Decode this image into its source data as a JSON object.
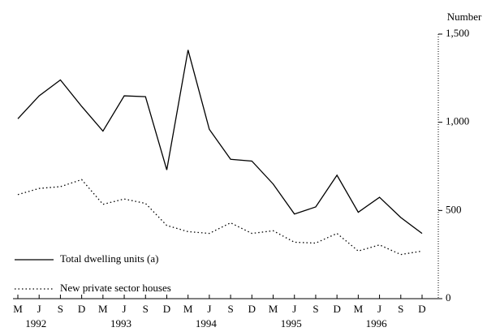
{
  "chart_data": {
    "type": "line",
    "y_label": "Number",
    "categories": [
      "M",
      "J",
      "S",
      "D",
      "M",
      "J",
      "S",
      "D",
      "M",
      "J",
      "S",
      "D",
      "M",
      "J",
      "S",
      "D",
      "M",
      "J",
      "S",
      "D"
    ],
    "years": [
      "1992",
      "1993",
      "1994",
      "1995",
      "1996"
    ],
    "series": [
      {
        "name": "Total dwelling units (a)",
        "color": "#000000",
        "style": "solid",
        "values": [
          1020,
          1150,
          1240,
          1090,
          950,
          1150,
          1145,
          730,
          1410,
          960,
          790,
          780,
          650,
          480,
          520,
          700,
          490,
          575,
          460,
          370
        ]
      },
      {
        "name": "New private sector houses",
        "color": "#000000",
        "style": "dotted",
        "values": [
          590,
          625,
          635,
          675,
          535,
          565,
          540,
          415,
          380,
          370,
          430,
          370,
          385,
          320,
          315,
          370,
          270,
          305,
          250,
          270
        ]
      }
    ],
    "ylim": [
      0,
      1500
    ],
    "yticks": [
      0,
      500,
      {
        "value": 1000,
        "label": "1,000"
      },
      {
        "value": 1500,
        "label": "1,500"
      }
    ],
    "legend": "lower-left"
  }
}
